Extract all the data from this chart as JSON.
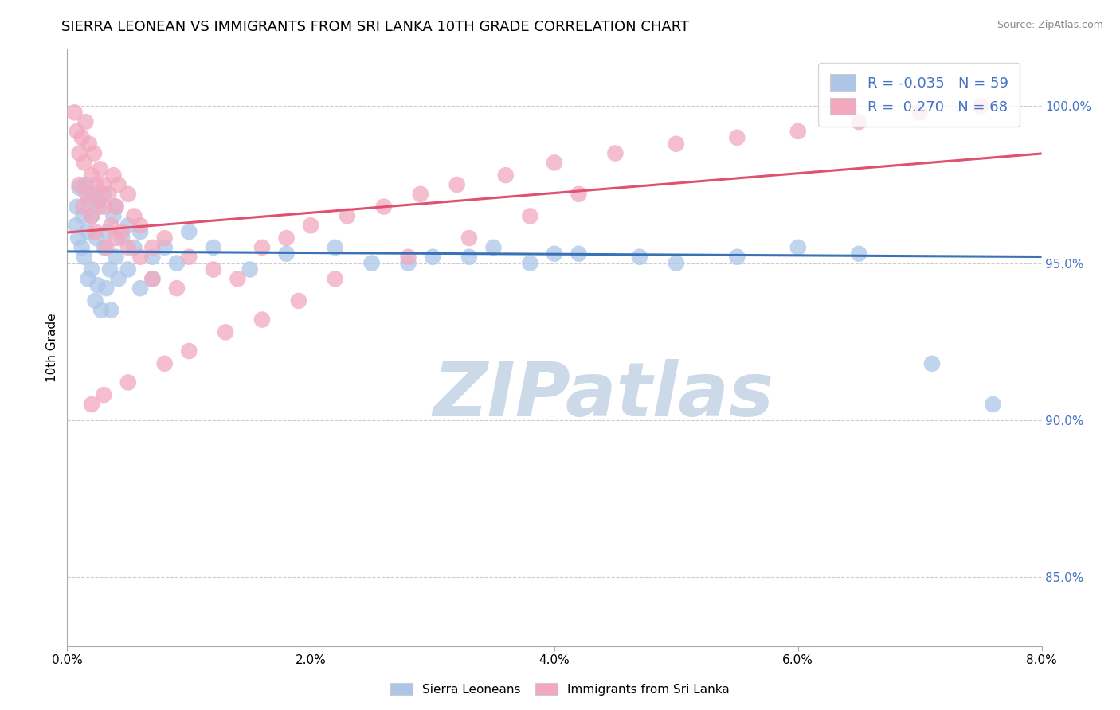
{
  "title": "SIERRA LEONEAN VS IMMIGRANTS FROM SRI LANKA 10TH GRADE CORRELATION CHART",
  "source": "Source: ZipAtlas.com",
  "ylabel": "10th Grade",
  "x_min": 0.0,
  "x_max": 0.08,
  "y_min": 0.828,
  "y_max": 1.018,
  "x_tick_labels": [
    "0.0%",
    "2.0%",
    "4.0%",
    "6.0%",
    "8.0%"
  ],
  "x_tick_vals": [
    0.0,
    0.02,
    0.04,
    0.06,
    0.08
  ],
  "y_tick_labels": [
    "85.0%",
    "90.0%",
    "95.0%",
    "100.0%"
  ],
  "y_tick_vals": [
    0.85,
    0.9,
    0.95,
    1.0
  ],
  "legend_labels": [
    "Sierra Leoneans",
    "Immigrants from Sri Lanka"
  ],
  "legend_r": [
    -0.035,
    0.27
  ],
  "legend_n": [
    59,
    68
  ],
  "blue_color": "#adc6e8",
  "pink_color": "#f2a8bf",
  "blue_line_color": "#3a72b8",
  "pink_line_color": "#e05070",
  "watermark_text": "ZIPatlas",
  "watermark_color": "#ccd9e8",
  "background_color": "#ffffff",
  "grid_color": "#cccccc",
  "title_fontsize": 13,
  "axis_label_fontsize": 11,
  "tick_fontsize": 11,
  "right_tick_color": "#4472c4",
  "legend_r_color": "#4472c4",
  "legend_n_color": "#4472c4",
  "blue_dots_x": [
    0.0007,
    0.0008,
    0.0009,
    0.001,
    0.0012,
    0.0013,
    0.0014,
    0.0015,
    0.0016,
    0.0017,
    0.0018,
    0.002,
    0.002,
    0.0022,
    0.0023,
    0.0024,
    0.0025,
    0.0026,
    0.0028,
    0.003,
    0.003,
    0.0032,
    0.0033,
    0.0035,
    0.0036,
    0.0038,
    0.004,
    0.004,
    0.0042,
    0.0045,
    0.005,
    0.005,
    0.0055,
    0.006,
    0.006,
    0.007,
    0.007,
    0.008,
    0.009,
    0.01,
    0.012,
    0.015,
    0.018,
    0.022,
    0.025,
    0.03,
    0.035,
    0.04,
    0.05,
    0.055,
    0.06,
    0.065,
    0.047,
    0.038,
    0.042,
    0.033,
    0.028,
    0.071,
    0.076
  ],
  "blue_dots_y": [
    0.962,
    0.968,
    0.958,
    0.974,
    0.955,
    0.965,
    0.952,
    0.975,
    0.96,
    0.945,
    0.97,
    0.948,
    0.965,
    0.972,
    0.938,
    0.958,
    0.943,
    0.968,
    0.935,
    0.955,
    0.972,
    0.942,
    0.96,
    0.948,
    0.935,
    0.965,
    0.952,
    0.968,
    0.945,
    0.958,
    0.948,
    0.962,
    0.955,
    0.942,
    0.96,
    0.952,
    0.945,
    0.955,
    0.95,
    0.96,
    0.955,
    0.948,
    0.953,
    0.955,
    0.95,
    0.952,
    0.955,
    0.953,
    0.95,
    0.952,
    0.955,
    0.953,
    0.952,
    0.95,
    0.953,
    0.952,
    0.95,
    0.918,
    0.905
  ],
  "pink_dots_x": [
    0.0006,
    0.0008,
    0.001,
    0.001,
    0.0012,
    0.0013,
    0.0014,
    0.0015,
    0.0016,
    0.0018,
    0.002,
    0.002,
    0.0022,
    0.0023,
    0.0024,
    0.0025,
    0.0027,
    0.003,
    0.003,
    0.0032,
    0.0034,
    0.0036,
    0.0038,
    0.004,
    0.004,
    0.0042,
    0.0045,
    0.005,
    0.005,
    0.0055,
    0.006,
    0.006,
    0.007,
    0.007,
    0.008,
    0.009,
    0.01,
    0.012,
    0.014,
    0.016,
    0.018,
    0.02,
    0.023,
    0.026,
    0.029,
    0.032,
    0.036,
    0.04,
    0.045,
    0.05,
    0.055,
    0.06,
    0.065,
    0.07,
    0.075,
    0.042,
    0.038,
    0.033,
    0.028,
    0.022,
    0.019,
    0.016,
    0.013,
    0.01,
    0.008,
    0.005,
    0.003,
    0.002
  ],
  "pink_dots_y": [
    0.998,
    0.992,
    0.985,
    0.975,
    0.99,
    0.968,
    0.982,
    0.995,
    0.972,
    0.988,
    0.978,
    0.965,
    0.985,
    0.96,
    0.975,
    0.97,
    0.98,
    0.968,
    0.975,
    0.955,
    0.972,
    0.962,
    0.978,
    0.958,
    0.968,
    0.975,
    0.96,
    0.972,
    0.955,
    0.965,
    0.952,
    0.962,
    0.955,
    0.945,
    0.958,
    0.942,
    0.952,
    0.948,
    0.945,
    0.955,
    0.958,
    0.962,
    0.965,
    0.968,
    0.972,
    0.975,
    0.978,
    0.982,
    0.985,
    0.988,
    0.99,
    0.992,
    0.995,
    0.998,
    1.0,
    0.972,
    0.965,
    0.958,
    0.952,
    0.945,
    0.938,
    0.932,
    0.928,
    0.922,
    0.918,
    0.912,
    0.908,
    0.905
  ]
}
